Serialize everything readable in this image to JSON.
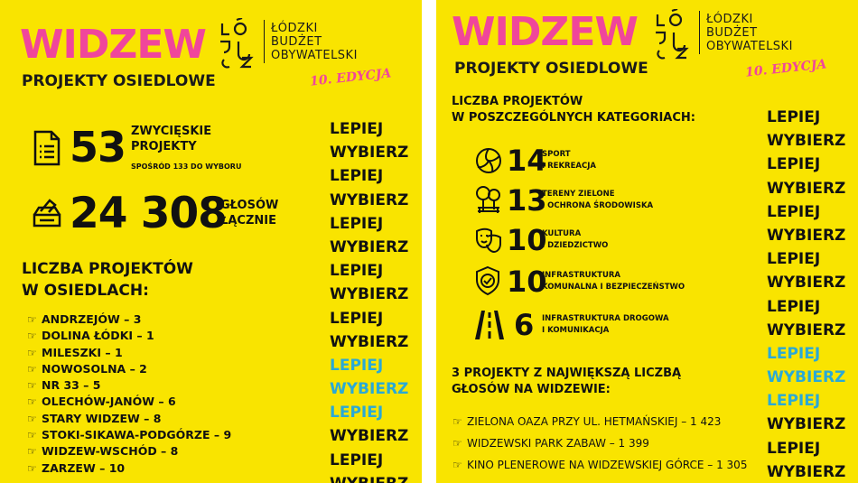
{
  "left": {
    "title": "WIDZEW",
    "subtitle": "PROJEKTY OSIEDLOWE",
    "logo_lines": [
      "ŁÓDZKI",
      "BUDŻET",
      "OBYWATELSKI"
    ],
    "edition": "10. EDYCJA",
    "stat1_number": "53",
    "stat1_label_1": "ZWYCIĘSKIE",
    "stat1_label_2": "PROJEKTY",
    "stat1_sub": "SPOŚRÓD 133 DO WYBORU",
    "stat2_number": "24 308",
    "stat2_label_1": "GŁOSÓW",
    "stat2_label_2": "ŁĄCZNIE",
    "heading_1": "LICZBA PROJEKTÓW",
    "heading_2": "W OSIEDLACH:",
    "districts": [
      "ANDRZEJÓW – 3",
      "DOLINA ŁÓDKI – 1",
      "MILESZKI – 1",
      "NOWOSOLNA – 2",
      "NR 33 – 5",
      "OLECHÓW-JANÓW – 6",
      "STARY WIDZEW – 8",
      "STOKI-SIKAWA-PODGÓRZE – 9",
      "WIDZEW-WSCHÓD – 8",
      "ZARZEW – 10"
    ],
    "repeat_words": [
      "LEPIEJ",
      "WYBIERZ",
      "LEPIEJ",
      "WYBIERZ",
      "LEPIEJ",
      "WYBIERZ",
      "LEPIEJ",
      "WYBIERZ",
      "LEPIEJ",
      "WYBIERZ",
      "LEPIEJ",
      "WYBIERZ",
      "LEPIEJ",
      "WYBIERZ",
      "LEPIEJ",
      "WYBIERZ"
    ]
  },
  "right": {
    "title": "WIDZEW",
    "subtitle": "PROJEKTY OSIEDLOWE",
    "logo_lines": [
      "ŁÓDZKI",
      "BUDŻET",
      "OBYWATELSKI"
    ],
    "edition": "10. EDYCJA",
    "heading_1": "LICZBA PROJEKTÓW",
    "heading_2": "W POSZCZEGÓLNYCH KATEGORIACH:",
    "categories": [
      {
        "icon": "volleyball-icon",
        "count": "14",
        "label_1": "SPORT",
        "label_2": "I REKREACJA"
      },
      {
        "icon": "trees-bench-icon",
        "count": "13",
        "label_1": "TERENY ZIELONE",
        "label_2": "I OCHRONA ŚRODOWISKA"
      },
      {
        "icon": "theater-masks-icon",
        "count": "10",
        "label_1": "KULTURA",
        "label_2": "I DZIEDZICTWO"
      },
      {
        "icon": "shield-check-icon",
        "count": "10",
        "label_1": "INFRASTRUKTURA",
        "label_2": "KOMUNALNA I BEZPIECZEŃSTWO"
      },
      {
        "icon": "road-icon",
        "count": "6",
        "label_1": "INFRASTRUKTURA DROGOWA",
        "label_2": "I KOMUNIKACJA"
      }
    ],
    "top_heading_1": "3 PROJEKTY Z NAJWIĘKSZĄ LICZBĄ",
    "top_heading_2": "GŁOSÓW NA WIDZEWIE:",
    "top_projects": [
      "ZIELONA OAZA PRZY UL. HETMAŃSKIEJ – 1 423",
      "WIDZEWSKI PARK ZABAW – 1 399",
      "KINO PLENEROWE NA WIDZEWSKIEJ GÓRCE – 1 305"
    ],
    "repeat_words": [
      "LEPIEJ",
      "WYBIERZ",
      "LEPIEJ",
      "WYBIERZ",
      "LEPIEJ",
      "WYBIERZ",
      "LEPIEJ",
      "WYBIERZ",
      "LEPIEJ",
      "WYBIERZ",
      "LEPIEJ",
      "WYBIERZ",
      "LEPIEJ",
      "WYBIERZ",
      "LEPIEJ",
      "WYBIERZ"
    ]
  },
  "colors": {
    "background": "#f9e400",
    "title_pink": "#f0469b",
    "highlight_blue": "#2aa9d6",
    "text": "#111111"
  }
}
